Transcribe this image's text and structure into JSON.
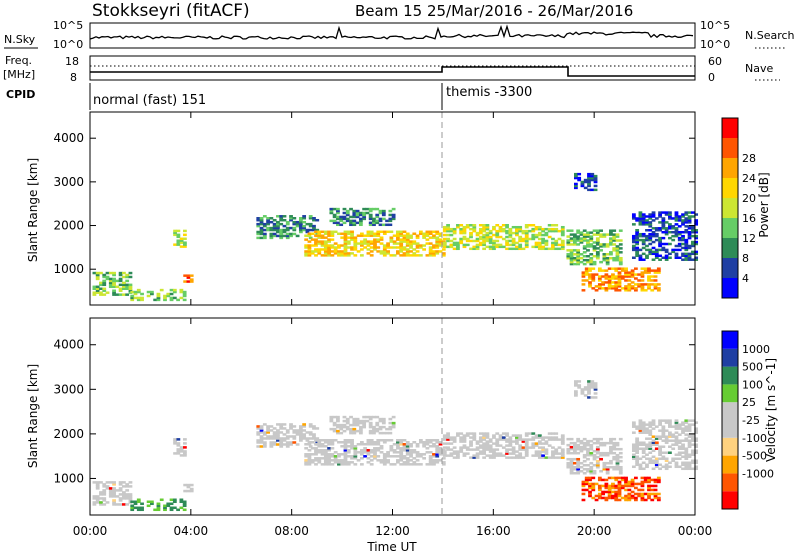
{
  "header": {
    "station": "Stokkseyri (fitACF)",
    "beam_and_dates": "Beam 15  25/Mar/2016 - 26/Mar/2016"
  },
  "panels": {
    "nsky": {
      "label": "N.Sky",
      "ytick_top": "10^5",
      "ytick_bottom": "10^0",
      "right_label": "N.Search",
      "right_tick_top": "10^5",
      "right_tick_bottom": "10^0"
    },
    "freq": {
      "label_line1": "Freq.",
      "label_line2": "[MHz]",
      "ytick_top": "18",
      "ytick_bottom": "8",
      "right_label": "Nave",
      "right_tick_top": "60",
      "right_tick_bottom": "0"
    },
    "cpid": {
      "label": "CPID",
      "modes": [
        "normal (fast) 151",
        "themis -3300"
      ]
    }
  },
  "colors": {
    "power": [
      "#0000ff",
      "#1f3fa3",
      "#2e8b57",
      "#66cd66",
      "#cce633",
      "#ffd700",
      "#ffa500",
      "#ff5500",
      "#ff0000"
    ],
    "velocity": [
      "#ff0000",
      "#ff5500",
      "#ffa500",
      "#ffd27f",
      "#c8c8c8",
      "#c8c8c8",
      "#66cc33",
      "#2e8b57",
      "#1f3fa3",
      "#0000ff"
    ]
  },
  "chart_data": [
    {
      "type": "heatmap",
      "title": "Power",
      "ylabel": "Slant Range [km]",
      "xlabel": "",
      "x_ticks": [
        "00:00",
        "04:00",
        "08:00",
        "12:00",
        "16:00",
        "20:00",
        "00:00"
      ],
      "x_range_hours": [
        0,
        24
      ],
      "y_ticks": [
        1000,
        2000,
        3000,
        4000
      ],
      "y_range_km": [
        180,
        4600
      ],
      "mode_change_hour": 14.0,
      "colorbar": {
        "label": "Power [dB]",
        "ticks": [
          "4",
          "8",
          "12",
          "16",
          "20",
          "24",
          "28"
        ],
        "range": [
          0,
          30
        ]
      }
    },
    {
      "type": "heatmap",
      "title": "Velocity",
      "ylabel": "Slant Range [km]",
      "xlabel": "Time UT",
      "x_ticks": [
        "00:00",
        "04:00",
        "08:00",
        "12:00",
        "16:00",
        "20:00",
        "00:00"
      ],
      "x_range_hours": [
        0,
        24
      ],
      "y_ticks": [
        1000,
        2000,
        3000,
        4000
      ],
      "y_range_km": [
        180,
        4600
      ],
      "mode_change_hour": 14.0,
      "colorbar": {
        "label": "Velocity [m s^-1]",
        "ticks": [
          "1000",
          "500",
          "100",
          "25",
          "-25",
          "-100",
          "-500",
          "-1000"
        ]
      }
    }
  ]
}
